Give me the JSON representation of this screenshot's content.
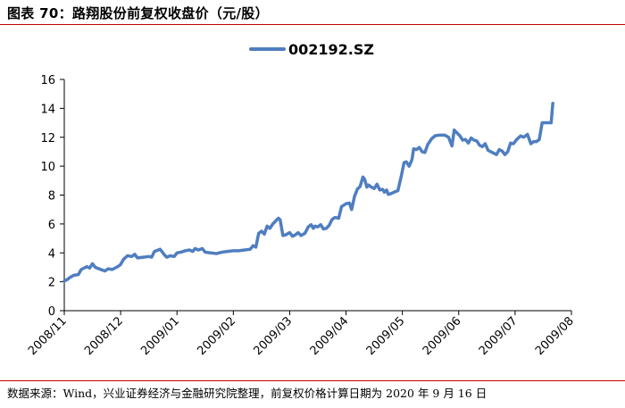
{
  "header": {
    "title": "图表 70：路翔股份前复权收盘价（元/股）"
  },
  "footer": {
    "source": "数据来源：Wind，兴业证券经济与金融研究院整理，前复权价格计算日期为 2020 年 9 月 16 日"
  },
  "colors": {
    "series": "#4f7ec0",
    "rule": "#c00000",
    "axis": "#000000"
  },
  "chart_data": {
    "type": "line",
    "ylim": [
      0,
      16
    ],
    "yticks": [
      0,
      2,
      4,
      6,
      8,
      10,
      12,
      14,
      16
    ],
    "x_tick_labels": [
      "2008/11",
      "2008/12",
      "2009/01",
      "2009/02",
      "2009/03",
      "2009/04",
      "2009/05",
      "2009/06",
      "2009/07",
      "2009/08"
    ],
    "grid": false,
    "legend_position": "top-center",
    "series": [
      {
        "name": "002192.SZ",
        "points": [
          [
            0.0,
            2.05
          ],
          [
            0.05,
            2.15
          ],
          [
            0.1,
            2.3
          ],
          [
            0.17,
            2.45
          ],
          [
            0.25,
            2.5
          ],
          [
            0.3,
            2.85
          ],
          [
            0.4,
            3.05
          ],
          [
            0.45,
            2.95
          ],
          [
            0.5,
            3.25
          ],
          [
            0.55,
            3.0
          ],
          [
            0.65,
            2.85
          ],
          [
            0.72,
            2.75
          ],
          [
            0.78,
            2.9
          ],
          [
            0.85,
            2.85
          ],
          [
            0.95,
            3.05
          ],
          [
            1.0,
            3.2
          ],
          [
            1.05,
            3.55
          ],
          [
            1.12,
            3.8
          ],
          [
            1.2,
            3.75
          ],
          [
            1.25,
            3.9
          ],
          [
            1.3,
            3.65
          ],
          [
            1.4,
            3.7
          ],
          [
            1.5,
            3.75
          ],
          [
            1.55,
            3.7
          ],
          [
            1.6,
            4.1
          ],
          [
            1.7,
            4.25
          ],
          [
            1.78,
            3.85
          ],
          [
            1.82,
            3.7
          ],
          [
            1.88,
            3.8
          ],
          [
            1.95,
            3.75
          ],
          [
            2.0,
            4.0
          ],
          [
            2.07,
            4.05
          ],
          [
            2.15,
            4.15
          ],
          [
            2.22,
            4.2
          ],
          [
            2.28,
            4.1
          ],
          [
            2.32,
            4.3
          ],
          [
            2.38,
            4.2
          ],
          [
            2.45,
            4.3
          ],
          [
            2.5,
            4.05
          ],
          [
            2.6,
            4.0
          ],
          [
            2.7,
            3.95
          ],
          [
            2.8,
            4.05
          ],
          [
            2.9,
            4.1
          ],
          [
            3.0,
            4.15
          ],
          [
            3.1,
            4.15
          ],
          [
            3.2,
            4.2
          ],
          [
            3.3,
            4.25
          ],
          [
            3.35,
            4.5
          ],
          [
            3.4,
            4.4
          ],
          [
            3.45,
            5.35
          ],
          [
            3.5,
            5.5
          ],
          [
            3.55,
            5.3
          ],
          [
            3.6,
            5.85
          ],
          [
            3.65,
            5.7
          ],
          [
            3.7,
            6.0
          ],
          [
            3.75,
            6.2
          ],
          [
            3.8,
            6.4
          ],
          [
            3.83,
            6.3
          ],
          [
            3.88,
            5.2
          ],
          [
            3.93,
            5.25
          ],
          [
            4.0,
            5.4
          ],
          [
            4.05,
            5.15
          ],
          [
            4.1,
            5.25
          ],
          [
            4.15,
            5.4
          ],
          [
            4.2,
            5.2
          ],
          [
            4.27,
            5.35
          ],
          [
            4.33,
            5.8
          ],
          [
            4.38,
            5.95
          ],
          [
            4.42,
            5.7
          ],
          [
            4.45,
            5.85
          ],
          [
            4.5,
            5.8
          ],
          [
            4.55,
            5.95
          ],
          [
            4.6,
            5.65
          ],
          [
            4.65,
            5.7
          ],
          [
            4.7,
            5.9
          ],
          [
            4.75,
            6.3
          ],
          [
            4.8,
            6.45
          ],
          [
            4.87,
            6.4
          ],
          [
            4.92,
            7.2
          ],
          [
            5.0,
            7.4
          ],
          [
            5.06,
            7.45
          ],
          [
            5.1,
            7.0
          ],
          [
            5.15,
            7.9
          ],
          [
            5.2,
            8.4
          ],
          [
            5.25,
            8.6
          ],
          [
            5.3,
            9.25
          ],
          [
            5.33,
            9.1
          ],
          [
            5.37,
            8.55
          ],
          [
            5.4,
            8.7
          ],
          [
            5.45,
            8.55
          ],
          [
            5.5,
            8.45
          ],
          [
            5.55,
            8.75
          ],
          [
            5.6,
            8.35
          ],
          [
            5.65,
            8.4
          ],
          [
            5.68,
            8.2
          ],
          [
            5.72,
            8.35
          ],
          [
            5.75,
            8.05
          ],
          [
            5.8,
            8.1
          ],
          [
            5.85,
            8.2
          ],
          [
            5.92,
            8.3
          ],
          [
            5.98,
            9.3
          ],
          [
            6.03,
            10.25
          ],
          [
            6.07,
            10.3
          ],
          [
            6.12,
            10.0
          ],
          [
            6.17,
            10.45
          ],
          [
            6.2,
            11.2
          ],
          [
            6.25,
            11.15
          ],
          [
            6.3,
            11.3
          ],
          [
            6.35,
            11.0
          ],
          [
            6.4,
            10.95
          ],
          [
            6.45,
            11.5
          ],
          [
            6.52,
            11.9
          ],
          [
            6.58,
            12.1
          ],
          [
            6.65,
            12.15
          ],
          [
            6.75,
            12.15
          ],
          [
            6.82,
            12.0
          ],
          [
            6.88,
            11.4
          ],
          [
            6.92,
            12.5
          ],
          [
            6.97,
            12.3
          ],
          [
            7.02,
            12.1
          ],
          [
            7.07,
            11.8
          ],
          [
            7.12,
            11.85
          ],
          [
            7.17,
            11.6
          ],
          [
            7.22,
            11.95
          ],
          [
            7.27,
            11.8
          ],
          [
            7.32,
            11.75
          ],
          [
            7.37,
            11.45
          ],
          [
            7.42,
            11.35
          ],
          [
            7.47,
            11.55
          ],
          [
            7.52,
            11.1
          ],
          [
            7.57,
            11.0
          ],
          [
            7.62,
            10.9
          ],
          [
            7.67,
            10.8
          ],
          [
            7.72,
            11.15
          ],
          [
            7.77,
            11.05
          ],
          [
            7.82,
            10.8
          ],
          [
            7.87,
            11.0
          ],
          [
            7.92,
            11.6
          ],
          [
            7.97,
            11.55
          ],
          [
            8.03,
            11.85
          ],
          [
            8.1,
            12.1
          ],
          [
            8.15,
            12.0
          ],
          [
            8.22,
            12.2
          ],
          [
            8.28,
            11.55
          ],
          [
            8.33,
            11.7
          ],
          [
            8.38,
            11.7
          ],
          [
            8.43,
            11.85
          ],
          [
            8.48,
            13.0
          ],
          [
            8.53,
            13.0
          ],
          [
            8.6,
            13.0
          ],
          [
            8.64,
            13.0
          ],
          [
            8.67,
            14.35
          ]
        ]
      }
    ]
  }
}
